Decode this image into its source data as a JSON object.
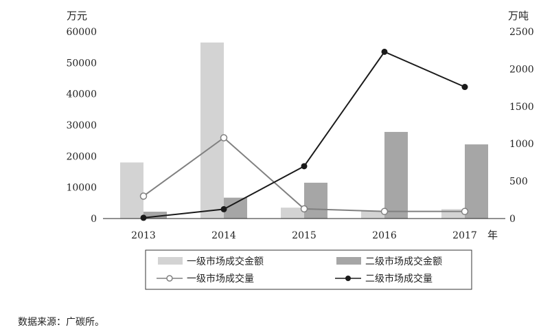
{
  "source_note": "数据来源：广碳所。",
  "chart_data": {
    "type": "bar",
    "categories": [
      "2013",
      "2014",
      "2015",
      "2016",
      "2017"
    ],
    "x_unit": "年",
    "left_axis": {
      "unit": "万元",
      "ylim": [
        0,
        60000
      ],
      "ticks": [
        0,
        10000,
        20000,
        30000,
        40000,
        50000,
        60000
      ]
    },
    "right_axis": {
      "unit": "万吨",
      "ylim": [
        0,
        2500
      ],
      "ticks": [
        0,
        500,
        1000,
        1500,
        2000,
        2500
      ]
    },
    "series": [
      {
        "name": "一级市场成交金额",
        "type": "bar",
        "axis": "left",
        "color": "#d3d3d3",
        "values": [
          18000,
          56500,
          3500,
          2500,
          3000
        ]
      },
      {
        "name": "二级市场成交金额",
        "type": "bar",
        "axis": "left",
        "color": "#a6a6a6",
        "values": [
          2200,
          6700,
          11500,
          27800,
          23800
        ]
      },
      {
        "name": "一级市场成交量",
        "type": "line",
        "axis": "right",
        "color": "#808080",
        "marker": "open-circle",
        "values": [
          300,
          1080,
          130,
          95,
          95
        ]
      },
      {
        "name": "二级市场成交量",
        "type": "line",
        "axis": "right",
        "color": "#1a1a1a",
        "marker": "filled-circle",
        "values": [
          10,
          125,
          700,
          2230,
          1760
        ]
      }
    ],
    "legend_position": "bottom",
    "grid": false
  }
}
